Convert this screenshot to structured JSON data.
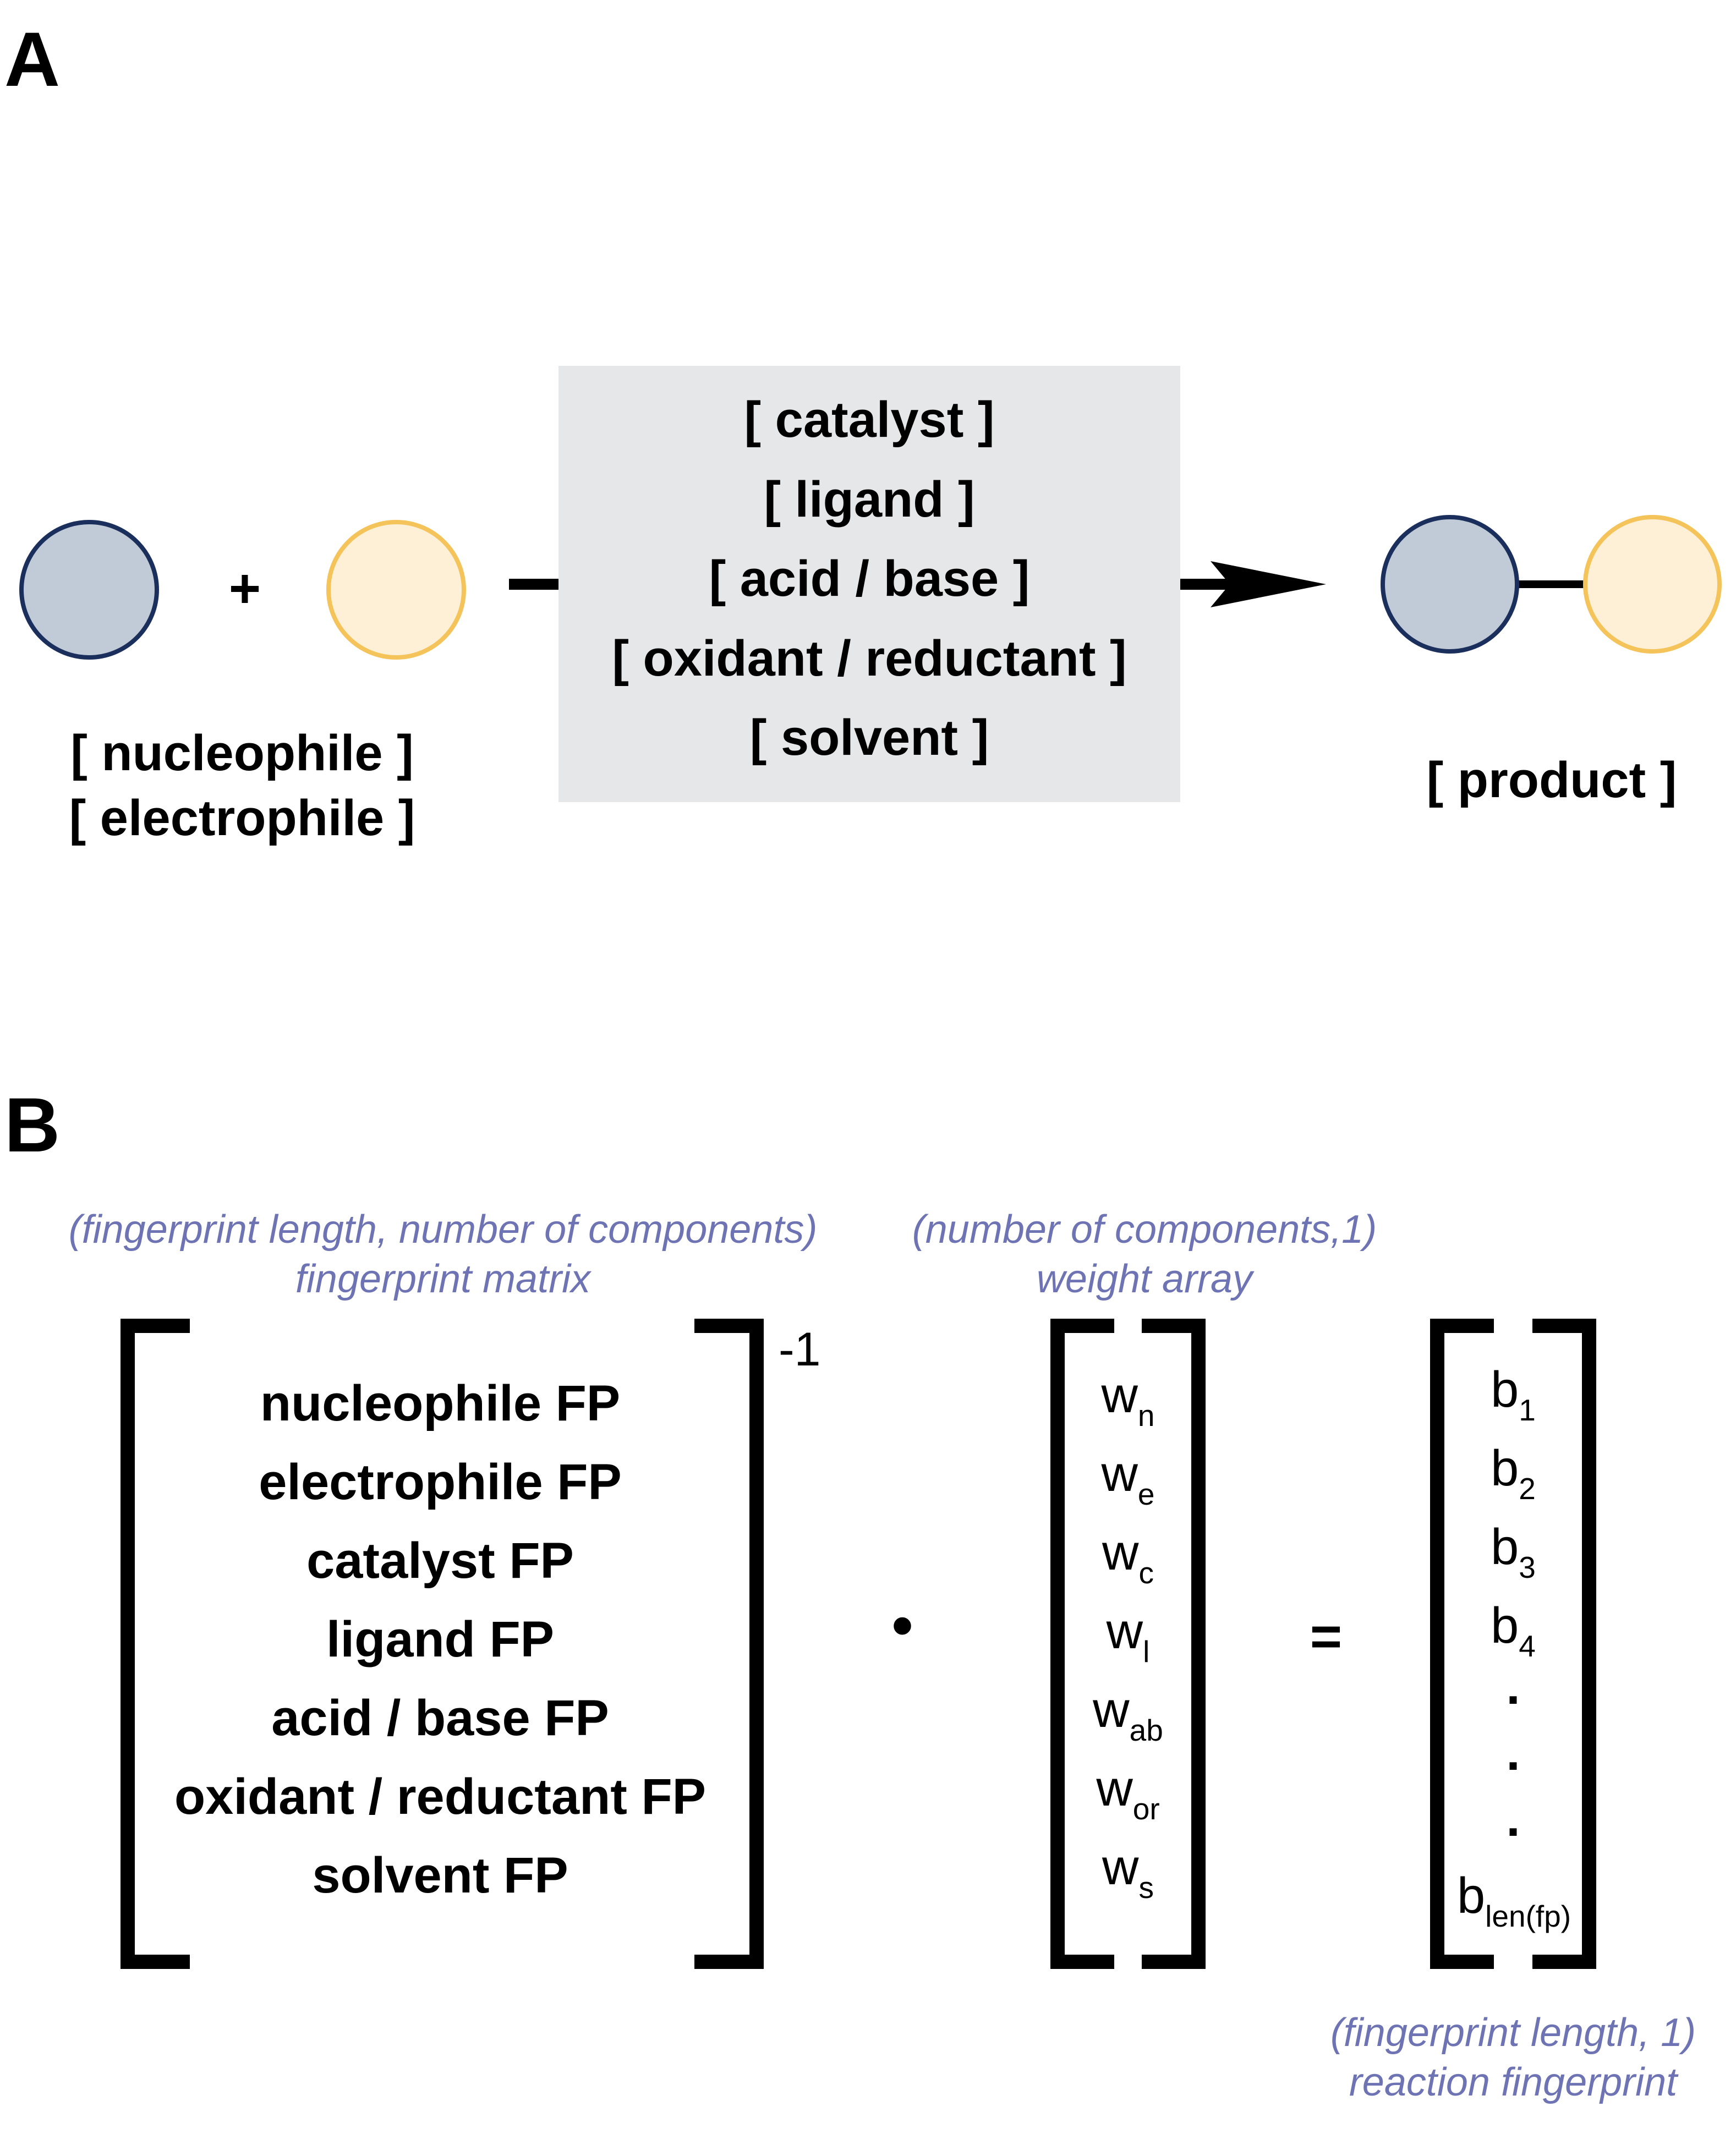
{
  "panel_a": {
    "letter": "A",
    "plus": "+",
    "reactant_labels": [
      "[ nucleophile ]",
      "[ electrophile ]"
    ],
    "conditions": [
      "[ catalyst ]",
      "[ ligand ]",
      "[ acid / base ]",
      "[ oxidant / reductant ]",
      "[ solvent ]"
    ],
    "product_label": "[ product ]",
    "colors": {
      "nucleophile_fill": "#c1cad7",
      "nucleophile_stroke": "#1b2f5c",
      "electrophile_fill": "#fdf0d6",
      "electrophile_stroke": "#f4c35a",
      "conditions_box": "#e6e7e8"
    }
  },
  "panel_b": {
    "letter": "B",
    "matrix": {
      "note": [
        "(fingerprint length, number of components)",
        "fingerprint matrix"
      ],
      "rows": [
        "nucleophile FP",
        "electrophile FP",
        "catalyst FP",
        "ligand FP",
        "acid / base FP",
        "oxidant / reductant FP",
        "solvent FP"
      ],
      "exponent": "-1"
    },
    "dot": "•",
    "equals": "=",
    "weights": {
      "note": [
        "(number of components,1)",
        "weight array"
      ],
      "items": [
        {
          "base": "w",
          "sub": "n"
        },
        {
          "base": "w",
          "sub": "e"
        },
        {
          "base": "w",
          "sub": "c"
        },
        {
          "base": "w",
          "sub": "l"
        },
        {
          "base": "w",
          "sub": "ab"
        },
        {
          "base": "w",
          "sub": "or"
        },
        {
          "base": "w",
          "sub": "s"
        }
      ]
    },
    "result": {
      "note": [
        "(fingerprint length, 1)",
        "reaction fingerprint"
      ],
      "items": [
        {
          "base": "b",
          "sub": "1"
        },
        {
          "base": "b",
          "sub": "2"
        },
        {
          "base": "b",
          "sub": "3"
        },
        {
          "base": "b",
          "sub": "4"
        },
        {
          "base": ".",
          "sub": ""
        },
        {
          "base": ".",
          "sub": ""
        },
        {
          "base": ".",
          "sub": ""
        },
        {
          "base": "b",
          "sub": "len(fp)"
        }
      ]
    },
    "colors": {
      "note_text": "#6e74b3"
    }
  }
}
